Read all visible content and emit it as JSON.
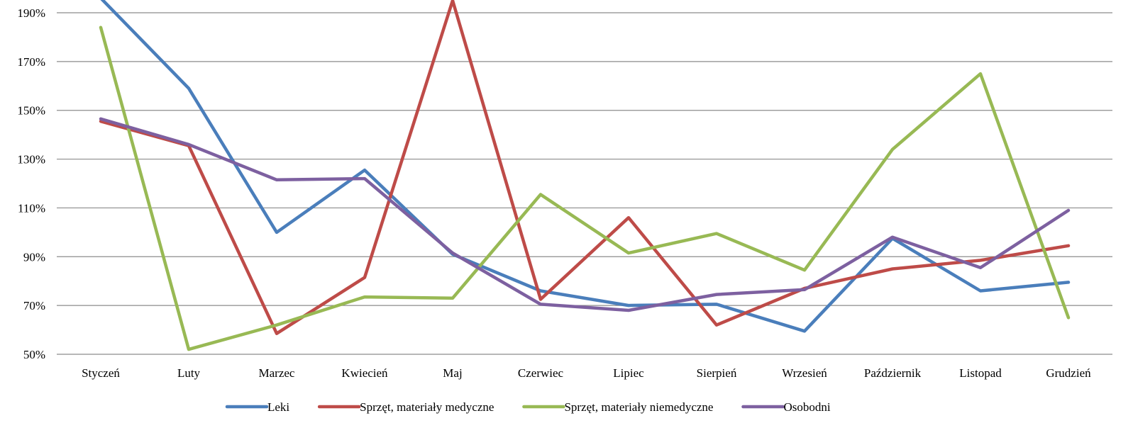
{
  "chart_data": {
    "type": "line",
    "categories": [
      "Styczeń",
      "Luty",
      "Marzec",
      "Kwiecień",
      "Maj",
      "Czerwiec",
      "Lipiec",
      "Sierpień",
      "Wrzesień",
      "Październik",
      "Listopad",
      "Grudzień"
    ],
    "ylim": [
      50,
      190
    ],
    "y_ticks": [
      50,
      70,
      90,
      110,
      130,
      150,
      170,
      190
    ],
    "y_tick_format": "%",
    "grid": true,
    "legend_position": "bottom",
    "title": "",
    "xlabel": "",
    "ylabel": "",
    "series": [
      {
        "name": "Leki",
        "color": "#4a7ebb",
        "values": [
          196,
          159,
          100,
          125.5,
          91,
          76,
          70,
          70.5,
          59.5,
          97.5,
          76,
          79.5
        ]
      },
      {
        "name": "Sprzęt, materiały medyczne",
        "color": "#be4b48",
        "values": [
          145.5,
          135.5,
          58.5,
          81.5,
          195,
          72.5,
          106,
          62,
          77,
          85,
          88.5,
          94.5
        ]
      },
      {
        "name": "Sprzęt, materiały niemedyczne",
        "color": "#98b954",
        "values": [
          184,
          52,
          62,
          73.5,
          73,
          115.5,
          91.5,
          99.5,
          84.5,
          134,
          165,
          65
        ]
      },
      {
        "name": "Osobodni",
        "color": "#7d60a0",
        "values": [
          146.5,
          136,
          121.5,
          122,
          91.5,
          70.5,
          68,
          74.5,
          76.5,
          98,
          85.5,
          109
        ]
      }
    ]
  }
}
